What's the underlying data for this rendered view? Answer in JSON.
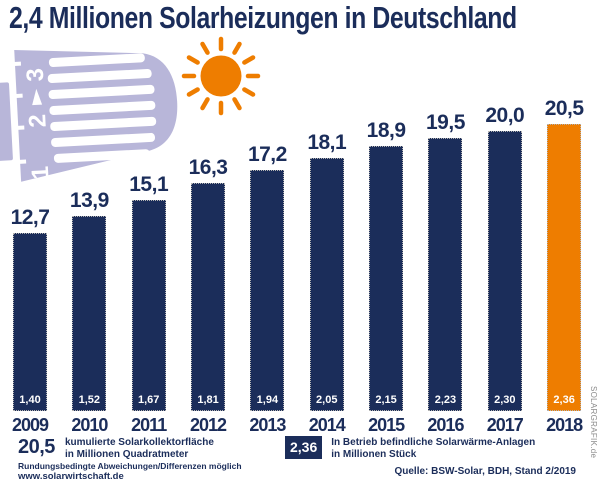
{
  "title": "2,4 Millionen Solarheizungen in Deutschland",
  "colors": {
    "navy": "#1b2d5a",
    "orange": "#ee7d00",
    "lavender": "#b8b6d9",
    "credit_gray": "#8c8c8c",
    "background": "#ffffff"
  },
  "chart_data": {
    "type": "bar",
    "title": "2,4 Millionen Solarheizungen in Deutschland",
    "categories": [
      "2009",
      "2010",
      "2011",
      "2012",
      "2013",
      "2014",
      "2015",
      "2016",
      "2017",
      "2018"
    ],
    "series": [
      {
        "name": "kumulierte Solarkollektorfläche in Millionen Quadratmeter",
        "values": [
          12.7,
          13.9,
          15.1,
          16.3,
          17.2,
          18.1,
          18.9,
          19.5,
          20.0,
          20.5
        ],
        "labels": [
          "12,7",
          "13,9",
          "15,1",
          "16,3",
          "17,2",
          "18,1",
          "18,9",
          "19,5",
          "20,0",
          "20,5"
        ],
        "role": "bar-height-with-label-above-bar"
      },
      {
        "name": "In Betrieb befindliche Solarwärme-Anlagen in Millionen Stück",
        "values": [
          1.4,
          1.52,
          1.67,
          1.81,
          1.94,
          2.05,
          2.15,
          2.23,
          2.3,
          2.36
        ],
        "labels": [
          "1,40",
          "1,52",
          "1,67",
          "1,81",
          "1,94",
          "2,05",
          "2,15",
          "2,23",
          "2,30",
          "2,36"
        ],
        "role": "white-label-inside-bar-bottom"
      }
    ],
    "highlight_index": 9,
    "bar_color": "#1b2d5a",
    "highlight_color": "#ee7d00",
    "ylim": [
      0,
      21
    ],
    "grid": false,
    "legend_position": "bottom"
  },
  "legend": {
    "area": {
      "value": "20,5",
      "line1": "kumulierte Solarkollektorfläche",
      "line2": "in Millionen Quadratmeter"
    },
    "units": {
      "value": "2,36",
      "line1": "In Betrieb befindliche Solarwärme-Anlagen",
      "line2": "in Millionen Stück"
    }
  },
  "footer": {
    "note": "Rundungsbedingte Abweichungen/Differenzen möglich",
    "website": "www.solarwirtschaft.de",
    "source": "Quelle: BSW-Solar, BDH, Stand 2/2019",
    "credit": "SOLARGRAFIK.de"
  },
  "decorations": {
    "sun_icon": "sun",
    "thermostat": {
      "dial_numbers": [
        "1",
        "2",
        "3"
      ]
    }
  }
}
